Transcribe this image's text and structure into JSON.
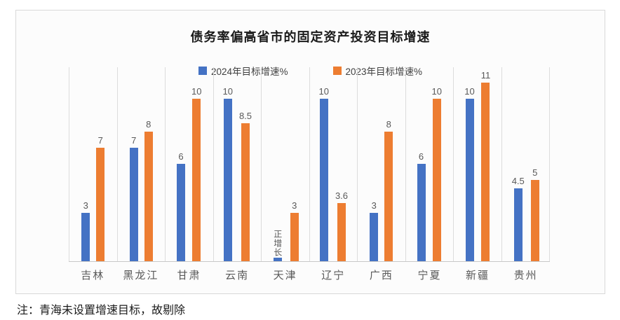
{
  "chart_data": {
    "type": "bar",
    "title": "债务率偏高省市的固定资产投资目标增速",
    "categories": [
      "吉林",
      "黑龙江",
      "甘肃",
      "云南",
      "天津",
      "辽宁",
      "广西",
      "宁夏",
      "新疆",
      "贵州"
    ],
    "series": [
      {
        "name": "2024年目标增速%",
        "color": "#4472C4",
        "values": [
          3,
          7,
          6,
          10,
          0.2,
          10,
          3,
          6,
          10,
          4.5
        ],
        "labels": [
          "3",
          "7",
          "6",
          "10",
          "正增长",
          "10",
          "3",
          "6",
          "10",
          "4.5"
        ],
        "vertical_label_indexes": [
          4
        ]
      },
      {
        "name": "2023年目标增速%",
        "color": "#ED7D31",
        "values": [
          7,
          8,
          10,
          8.5,
          3,
          3.6,
          8,
          10,
          11,
          5
        ],
        "labels": [
          "7",
          "8",
          "10",
          "8.5",
          "3",
          "3.6",
          "8",
          "10",
          "11",
          "5"
        ],
        "vertical_label_indexes": []
      }
    ],
    "ylim": [
      0,
      12
    ],
    "yaxis_visible": false,
    "grid": "vertical-category-separators",
    "legend_position": "top",
    "annotations": [
      {
        "category": "天津",
        "series": "2024年目标增速%",
        "text": "正增长"
      }
    ]
  },
  "note": "注：青海未设置增速目标，故剔除",
  "colors": {
    "series_2024": "#4472C4",
    "series_2023": "#ED7D31",
    "data_label": "#595959",
    "grid_line": "#dcdcdc",
    "card_border": "#d9d9d9"
  }
}
